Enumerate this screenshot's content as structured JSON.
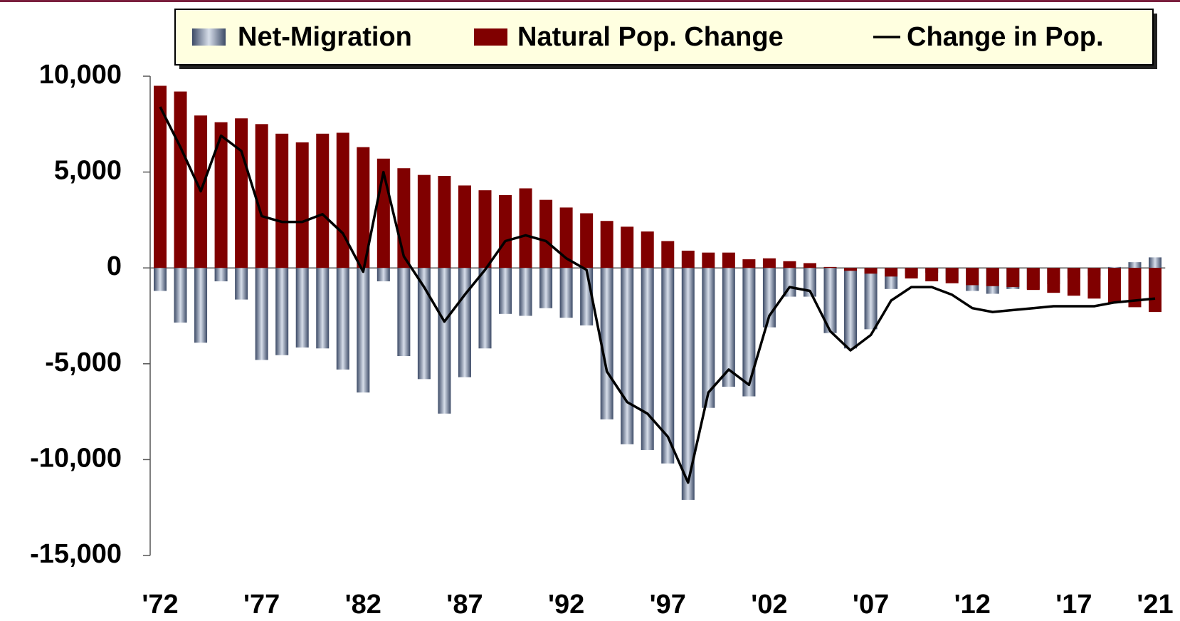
{
  "chart_data": {
    "type": "bar_line",
    "categories": [
      "'72",
      null,
      null,
      null,
      null,
      "'77",
      null,
      null,
      null,
      null,
      "'82",
      null,
      null,
      null,
      null,
      "'87",
      null,
      null,
      null,
      null,
      "'92",
      null,
      null,
      null,
      null,
      "'97",
      null,
      null,
      null,
      null,
      "'02",
      null,
      null,
      null,
      null,
      "'07",
      null,
      null,
      null,
      null,
      "'12",
      null,
      null,
      null,
      null,
      "'17",
      null,
      null,
      null,
      "'21"
    ],
    "series": [
      {
        "name": "Net-Migration",
        "kind": "bar",
        "color": "#8a9bb8",
        "values": [
          -1200,
          -2850,
          -3900,
          -700,
          -1650,
          -4800,
          -4550,
          -4150,
          -4200,
          -5300,
          -6500,
          -700,
          -4600,
          -5800,
          -7600,
          -5700,
          -4200,
          -2400,
          -2500,
          -2100,
          -2600,
          -3000,
          -7900,
          -9200,
          -9500,
          -10200,
          -12100,
          -7300,
          -6200,
          -6700,
          -3100,
          -1500,
          -1500,
          -3400,
          -4200,
          -3200,
          -1100,
          -400,
          -250,
          -650,
          -1200,
          -1350,
          -1100,
          -1100,
          -850,
          -550,
          -400,
          50,
          300,
          550
        ]
      },
      {
        "name": "Natural Pop. Change",
        "kind": "bar",
        "color": "#800000",
        "values": [
          9500,
          9200,
          7950,
          7600,
          7800,
          7500,
          7000,
          6550,
          7000,
          7050,
          6300,
          5700,
          5200,
          4850,
          4800,
          4300,
          4050,
          3800,
          4150,
          3550,
          3150,
          2850,
          2450,
          2150,
          1900,
          1400,
          900,
          800,
          800,
          450,
          500,
          350,
          250,
          50,
          -150,
          -300,
          -450,
          -550,
          -700,
          -800,
          -900,
          -950,
          -1000,
          -1150,
          -1300,
          -1450,
          -1600,
          -1800,
          -2050,
          -2300
        ]
      },
      {
        "name": "Change in Pop.",
        "kind": "line",
        "color": "#000000",
        "values": [
          8400,
          6300,
          4000,
          6900,
          6100,
          2700,
          2400,
          2400,
          2800,
          1800,
          -200,
          5000,
          600,
          -1000,
          -2800,
          -1400,
          -100,
          1400,
          1700,
          1400,
          500,
          -100,
          -5400,
          -7000,
          -7600,
          -8800,
          -11200,
          -6500,
          -5300,
          -6100,
          -2500,
          -1000,
          -1200,
          -3300,
          -4300,
          -3500,
          -1700,
          -1000,
          -1000,
          -1400,
          -2100,
          -2300,
          -2200,
          -2100,
          -2000,
          -2000,
          -2000,
          -1800,
          -1700,
          -1600
        ]
      }
    ],
    "ylim": [
      -15000,
      10000
    ],
    "yticks": [
      {
        "value": -15000,
        "label": "-15,000"
      },
      {
        "value": -10000,
        "label": "-10,000"
      },
      {
        "value": -5000,
        "label": "-5,000"
      },
      0,
      {
        "value": 5000,
        "label": "5,000"
      },
      {
        "value": 10000,
        "label": "10,000"
      }
    ],
    "legend": "top-right"
  }
}
